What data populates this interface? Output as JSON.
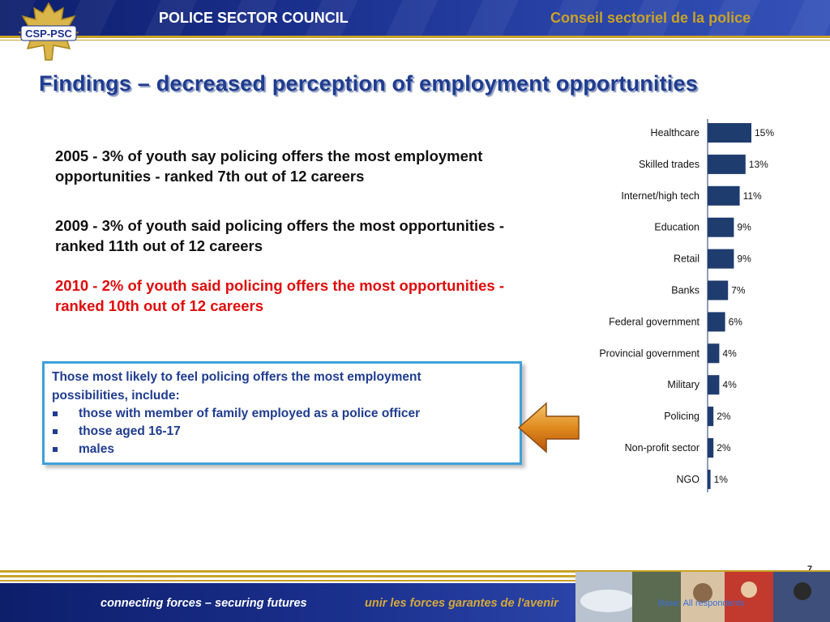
{
  "header": {
    "left_title": "POLICE SECTOR COUNCIL",
    "right_title": "Conseil  sectoriel de la police",
    "logo_text": "CSP-PSC"
  },
  "slide": {
    "title": "Findings – decreased perception of employment opportunities",
    "findings": [
      "2005 - 3% of youth say policing offers the most employment opportunities - ranked 7th out of 12 careers",
      "2009 - 3% of youth said policing offers the most opportunities - ranked 11th out of 12 careers",
      "2010 - 2% of youth said policing offers the most opportunities - ranked 10th out of 12 careers"
    ],
    "callout": {
      "intro": "Those most likely to feel policing offers the most employment possibilities, include:",
      "bullets": [
        "those with member of family employed as a police officer",
        "those aged 16-17",
        "males"
      ]
    }
  },
  "chart_data": {
    "type": "bar",
    "orientation": "horizontal",
    "categories": [
      "Healthcare",
      "Skilled trades",
      "Internet/high tech",
      "Education",
      "Retail",
      "Banks",
      "Federal government",
      "Provincial government",
      "Military",
      "Policing",
      "Non-profit sector",
      "NGO"
    ],
    "values": [
      15,
      13,
      11,
      9,
      9,
      7,
      6,
      4,
      4,
      2,
      2,
      1
    ],
    "value_labels": [
      "15%",
      "13%",
      "11%",
      "9%",
      "9%",
      "7%",
      "6%",
      "4%",
      "4%",
      "2%",
      "2%",
      "1%"
    ],
    "bar_color": "#1f3c6e",
    "xlim": [
      0,
      15
    ]
  },
  "footer": {
    "tagline_en": "connecting forces – securing futures",
    "tagline_fr": "unir les forces garantes de l'avenir",
    "page_number": "7",
    "base_note": "Base: All respondents"
  },
  "colors": {
    "header_blue": "#1a2f8c",
    "gold": "#c9a227",
    "title_blue": "#1f3c8f",
    "highlight_red": "#e00b0b",
    "callout_border": "#3fa0d8"
  }
}
